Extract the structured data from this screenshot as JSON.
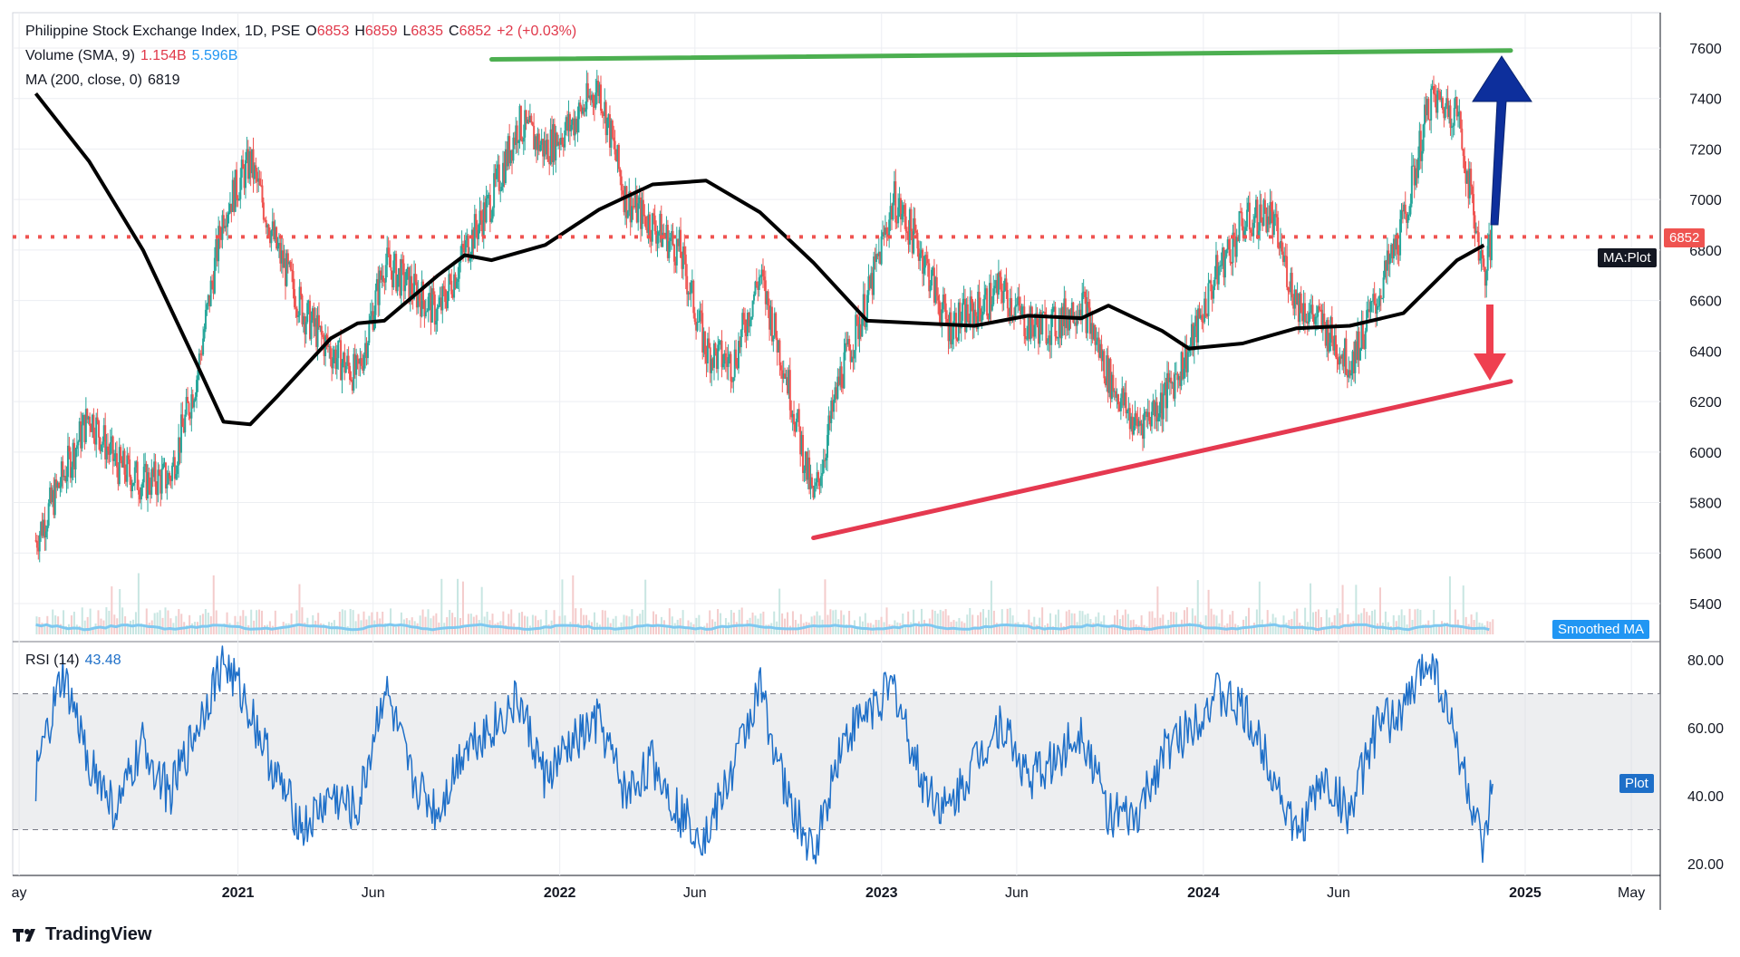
{
  "header": {
    "symbol_line": "Philippine Stock Exchange Index, 1D, PSE",
    "open_label": "O",
    "open": "6853",
    "high_label": "H",
    "high": "6859",
    "low_label": "L",
    "low": "6835",
    "close_label": "C",
    "close": "6852",
    "change": "+2 (+0.03%)",
    "volume_label": "Volume (SMA, 9)",
    "volume_val1": "1.154B",
    "volume_val2": "5.596B",
    "ma_label": "MA (200, close, 0)",
    "ma_val": "6819",
    "rsi_label": "RSI (14)",
    "rsi_val": "43.48"
  },
  "tags": {
    "price": "6852",
    "ma_plot": "MA:Plot",
    "smoothed_ma": "Smoothed MA",
    "rsi_plot": "Plot"
  },
  "footer": {
    "brand": "TradingView"
  },
  "colors": {
    "up": "#26a69a",
    "down": "#ef5350",
    "ma": "#000000",
    "resistance": "#4caf50",
    "support": "#e53950",
    "arrow_up": "#0d2f9c",
    "arrow_down": "#ef4050",
    "rsi": "#1e6fc8",
    "volume_ma": "#7ec8f0"
  },
  "chart_data": [
    {
      "type": "candlestick",
      "title": "Philippine Stock Exchange Index, 1D, PSE",
      "y_ticks": [
        5400,
        5600,
        5800,
        6000,
        6200,
        6400,
        6600,
        6800,
        7000,
        7200,
        7400,
        7600
      ],
      "x_ticks": [
        "ay",
        "2021",
        "Jun",
        "2022",
        "Jun",
        "2023",
        "Jun",
        "2024",
        "Jun",
        "2025",
        "May"
      ],
      "last_price": 6852,
      "series": [
        {
          "name": "MA (200, close, 0)",
          "points": [
            [
              "2020-05",
              7420
            ],
            [
              "2020-07",
              7150
            ],
            [
              "2020-09",
              6800
            ],
            [
              "2020-11",
              6350
            ],
            [
              "2020-12",
              6120
            ],
            [
              "2021-01",
              6110
            ],
            [
              "2021-02",
              6220
            ],
            [
              "2021-04",
              6450
            ],
            [
              "2021-05",
              6510
            ],
            [
              "2021-06",
              6520
            ],
            [
              "2021-08",
              6700
            ],
            [
              "2021-09",
              6780
            ],
            [
              "2021-10",
              6760
            ],
            [
              "2021-12",
              6820
            ],
            [
              "2022-02",
              6960
            ],
            [
              "2022-04",
              7060
            ],
            [
              "2022-06",
              7075
            ],
            [
              "2022-08",
              6950
            ],
            [
              "2022-10",
              6750
            ],
            [
              "2022-12",
              6520
            ],
            [
              "2023-02",
              6510
            ],
            [
              "2023-04",
              6500
            ],
            [
              "2023-06",
              6540
            ],
            [
              "2023-08",
              6530
            ],
            [
              "2023-09",
              6580
            ],
            [
              "2023-11",
              6480
            ],
            [
              "2023-12",
              6410
            ],
            [
              "2024-02",
              6430
            ],
            [
              "2024-04",
              6490
            ],
            [
              "2024-06",
              6500
            ],
            [
              "2024-08",
              6550
            ],
            [
              "2024-10",
              6760
            ],
            [
              "2024-11",
              6819
            ]
          ]
        },
        {
          "name": "Close",
          "points": [
            [
              "2020-05",
              5650
            ],
            [
              "2020-06",
              5900
            ],
            [
              "2020-07",
              6150
            ],
            [
              "2020-08",
              5950
            ],
            [
              "2020-09",
              5880
            ],
            [
              "2020-10",
              5900
            ],
            [
              "2020-11",
              6300
            ],
            [
              "2020-12",
              6950
            ],
            [
              "2021-01",
              7150
            ],
            [
              "2021-02",
              6800
            ],
            [
              "2021-03",
              6550
            ],
            [
              "2021-04",
              6400
            ],
            [
              "2021-05",
              6300
            ],
            [
              "2021-06",
              6750
            ],
            [
              "2021-07",
              6650
            ],
            [
              "2021-08",
              6550
            ],
            [
              "2021-09",
              6800
            ],
            [
              "2021-10",
              7000
            ],
            [
              "2021-11",
              7300
            ],
            [
              "2021-12",
              7200
            ],
            [
              "2022-01",
              7300
            ],
            [
              "2022-02",
              7450
            ],
            [
              "2022-03",
              7000
            ],
            [
              "2022-04",
              6900
            ],
            [
              "2022-05",
              6800
            ],
            [
              "2022-06",
              6400
            ],
            [
              "2022-07",
              6350
            ],
            [
              "2022-08",
              6700
            ],
            [
              "2022-09",
              6300
            ],
            [
              "2022-10",
              5800
            ],
            [
              "2022-11",
              6300
            ],
            [
              "2022-12",
              6600
            ],
            [
              "2023-01",
              7000
            ],
            [
              "2023-02",
              6800
            ],
            [
              "2023-03",
              6500
            ],
            [
              "2023-04",
              6550
            ],
            [
              "2023-05",
              6650
            ],
            [
              "2023-06",
              6500
            ],
            [
              "2023-07",
              6500
            ],
            [
              "2023-08",
              6600
            ],
            [
              "2023-09",
              6300
            ],
            [
              "2023-10",
              6100
            ],
            [
              "2023-11",
              6200
            ],
            [
              "2023-12",
              6400
            ],
            [
              "2024-01",
              6700
            ],
            [
              "2024-02",
              6900
            ],
            [
              "2024-03",
              6950
            ],
            [
              "2024-04",
              6600
            ],
            [
              "2024-05",
              6500
            ],
            [
              "2024-06",
              6350
            ],
            [
              "2024-07",
              6600
            ],
            [
              "2024-08",
              6900
            ],
            [
              "2024-09",
              7400
            ],
            [
              "2024-10",
              7350
            ],
            [
              "2024-11",
              6700
            ],
            [
              "2024-11-25",
              6852
            ]
          ]
        },
        {
          "name": "Resistance trendline",
          "points": [
            [
              "2021-10",
              7555
            ],
            [
              "2024-12",
              7590
            ]
          ]
        },
        {
          "name": "Support trendline",
          "points": [
            [
              "2022-10",
              5660
            ],
            [
              "2024-12",
              6280
            ]
          ]
        }
      ]
    },
    {
      "type": "line",
      "title": "RSI (14)",
      "y_ticks": [
        20,
        40,
        60,
        80
      ],
      "bands": [
        30,
        70
      ],
      "last_value": 43.48,
      "series": [
        {
          "name": "RSI (14)",
          "points": [
            [
              "2020-05",
              45
            ],
            [
              "2020-06",
              75
            ],
            [
              "2020-07",
              50
            ],
            [
              "2020-08",
              35
            ],
            [
              "2020-09",
              55
            ],
            [
              "2020-10",
              40
            ],
            [
              "2020-11",
              60
            ],
            [
              "2020-12",
              80
            ],
            [
              "2021-01",
              65
            ],
            [
              "2021-02",
              45
            ],
            [
              "2021-03",
              30
            ],
            [
              "2021-04",
              40
            ],
            [
              "2021-05",
              35
            ],
            [
              "2021-06",
              72
            ],
            [
              "2021-07",
              45
            ],
            [
              "2021-08",
              35
            ],
            [
              "2021-09",
              55
            ],
            [
              "2021-10",
              60
            ],
            [
              "2021-11",
              68
            ],
            [
              "2021-12",
              45
            ],
            [
              "2022-01",
              55
            ],
            [
              "2022-02",
              62
            ],
            [
              "2022-03",
              40
            ],
            [
              "2022-04",
              50
            ],
            [
              "2022-05",
              35
            ],
            [
              "2022-06",
              28
            ],
            [
              "2022-07",
              48
            ],
            [
              "2022-08",
              72
            ],
            [
              "2022-09",
              40
            ],
            [
              "2022-10",
              22
            ],
            [
              "2022-11",
              55
            ],
            [
              "2022-12",
              65
            ],
            [
              "2023-01",
              72
            ],
            [
              "2023-02",
              45
            ],
            [
              "2023-03",
              35
            ],
            [
              "2023-04",
              50
            ],
            [
              "2023-05",
              62
            ],
            [
              "2023-06",
              45
            ],
            [
              "2023-07",
              50
            ],
            [
              "2023-08",
              60
            ],
            [
              "2023-09",
              35
            ],
            [
              "2023-10",
              32
            ],
            [
              "2023-11",
              52
            ],
            [
              "2023-12",
              60
            ],
            [
              "2024-01",
              70
            ],
            [
              "2024-02",
              65
            ],
            [
              "2024-03",
              50
            ],
            [
              "2024-04",
              28
            ],
            [
              "2024-05",
              45
            ],
            [
              "2024-06",
              35
            ],
            [
              "2024-07",
              60
            ],
            [
              "2024-08",
              65
            ],
            [
              "2024-09",
              82
            ],
            [
              "2024-10",
              55
            ],
            [
              "2024-11",
              22
            ],
            [
              "2024-11-25",
              43.48
            ]
          ]
        }
      ]
    }
  ]
}
